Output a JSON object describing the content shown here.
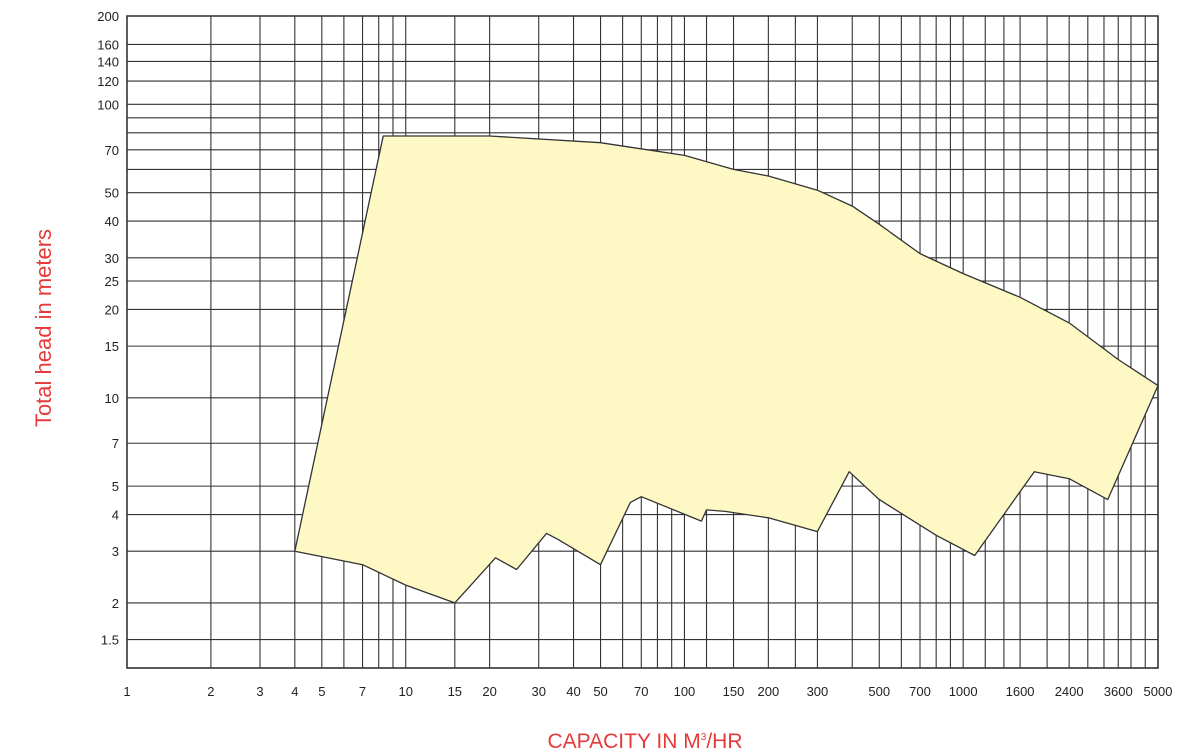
{
  "chart_data": {
    "type": "area",
    "xlabel": "CAPACITY IN M",
    "xlabel_sup": "3",
    "xlabel_suffix": "/HR",
    "ylabel": "Total head in meters",
    "x_scale": "log",
    "y_scale": "log",
    "xlim": [
      1,
      5000
    ],
    "ylim": [
      1.2,
      200
    ],
    "grid": true,
    "x_ticks": [
      1,
      2,
      3,
      4,
      5,
      7,
      10,
      15,
      20,
      30,
      40,
      50,
      70,
      100,
      150,
      200,
      300,
      500,
      700,
      1000,
      1600,
      2400,
      3600,
      5000
    ],
    "x_tick_labels": [
      "1",
      "2",
      "3",
      "4",
      "5",
      "7",
      "10",
      "15",
      "20",
      "30",
      "40",
      "50",
      "70",
      "100",
      "150",
      "200",
      "300",
      "500",
      "700",
      "1000",
      "1600",
      "2400",
      "3600",
      "5000"
    ],
    "y_ticks": [
      1.5,
      2,
      3,
      4,
      5,
      7,
      10,
      15,
      20,
      25,
      30,
      40,
      50,
      70,
      100,
      120,
      140,
      160,
      200
    ],
    "y_tick_labels": [
      "1.5",
      "2",
      "3",
      "4",
      "5",
      "7",
      "10",
      "15",
      "20",
      "25",
      "30",
      "40",
      "50",
      "70",
      "100",
      "120",
      "140",
      "160",
      "200"
    ],
    "x_grid_extra": [
      6,
      8,
      9,
      60,
      80,
      90,
      120,
      250,
      400,
      600,
      800,
      900,
      1200,
      1400,
      2000,
      2800,
      3200,
      4000,
      4500
    ],
    "y_grid_extra": [
      60,
      80,
      90
    ],
    "region_fill": "#fdf8c4",
    "region_stroke": "#333333",
    "region": {
      "upper": [
        [
          8.3,
          78
        ],
        [
          20,
          78
        ],
        [
          50,
          74
        ],
        [
          100,
          67
        ],
        [
          150,
          60
        ],
        [
          200,
          57
        ],
        [
          300,
          51
        ],
        [
          400,
          45
        ],
        [
          500,
          39
        ],
        [
          700,
          31
        ],
        [
          1000,
          26.5
        ],
        [
          1600,
          22
        ],
        [
          2400,
          18
        ],
        [
          3600,
          13.5
        ],
        [
          5000,
          11
        ]
      ],
      "lower": [
        [
          5000,
          11
        ],
        [
          3300,
          4.5
        ],
        [
          2400,
          5.3
        ],
        [
          1800,
          5.6
        ],
        [
          1100,
          2.9
        ],
        [
          800,
          3.4
        ],
        [
          500,
          4.5
        ],
        [
          390,
          5.6
        ],
        [
          300,
          3.5
        ],
        [
          200,
          3.9
        ],
        [
          140,
          4.1
        ],
        [
          120,
          4.15
        ],
        [
          115,
          3.8
        ],
        [
          70,
          4.6
        ],
        [
          64,
          4.4
        ],
        [
          50,
          2.7
        ],
        [
          35,
          3.3
        ],
        [
          32,
          3.45
        ],
        [
          25,
          2.6
        ],
        [
          21,
          2.85
        ],
        [
          15,
          2.0
        ],
        [
          10,
          2.3
        ],
        [
          7,
          2.7
        ],
        [
          4,
          3.0
        ]
      ]
    }
  }
}
